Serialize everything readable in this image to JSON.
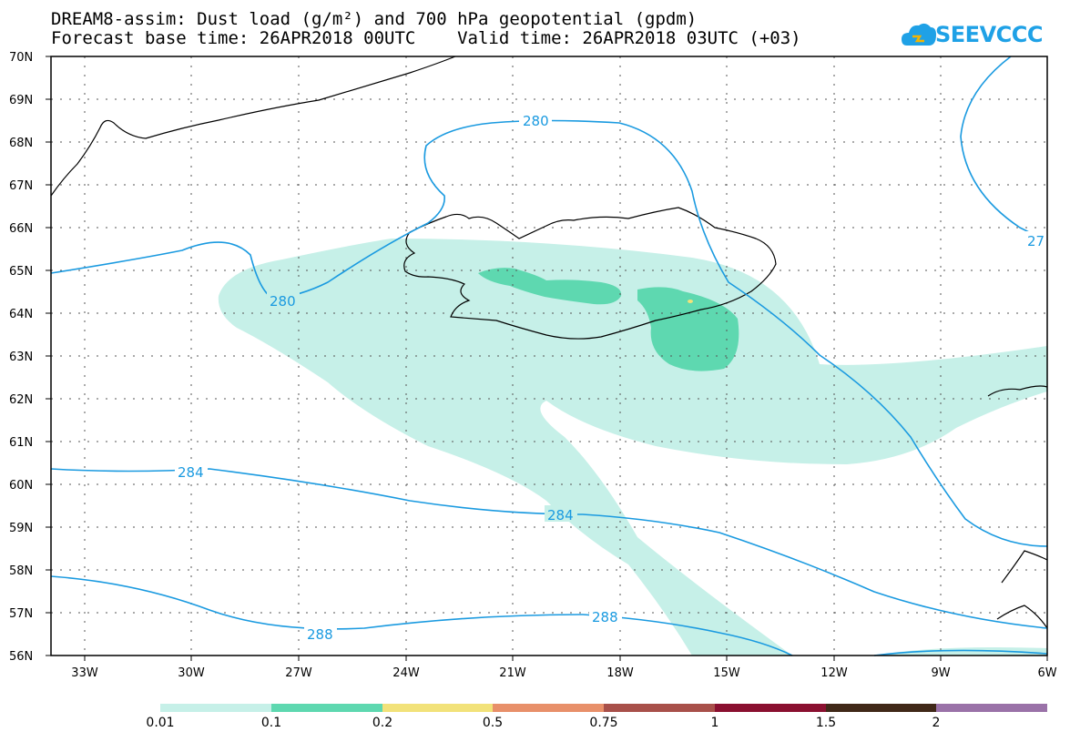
{
  "title_line1": "DREAM8-assim: Dust load (g/m²) and 700 hPa geopotential (gpdm)",
  "title_line2": "Forecast base time: 26APR2018 00UTC    Valid time: 26APR2018 03UTC (+03)",
  "logo_text": "SEEVCCC",
  "lat_labels": [
    "70N",
    "69N",
    "68N",
    "67N",
    "66N",
    "65N",
    "64N",
    "63N",
    "62N",
    "61N",
    "60N",
    "59N",
    "58N",
    "57N",
    "56N"
  ],
  "lon_labels": [
    "33W",
    "30W",
    "27W",
    "24W",
    "21W",
    "18W",
    "15W",
    "12W",
    "9W",
    "6W"
  ],
  "contour_labels": [
    "280",
    "280",
    "27",
    "284",
    "284",
    "288",
    "288"
  ],
  "colorbar": {
    "colors": [
      "#c6f0e8",
      "#5ed8b0",
      "#f2e27a",
      "#e8906a",
      "#a8504a",
      "#8a1030",
      "#402818",
      "#9a72a8"
    ],
    "labels": [
      "0.01",
      "0.1",
      "0.2",
      "0.5",
      "0.75",
      "1",
      "1.5",
      "2"
    ]
  }
}
